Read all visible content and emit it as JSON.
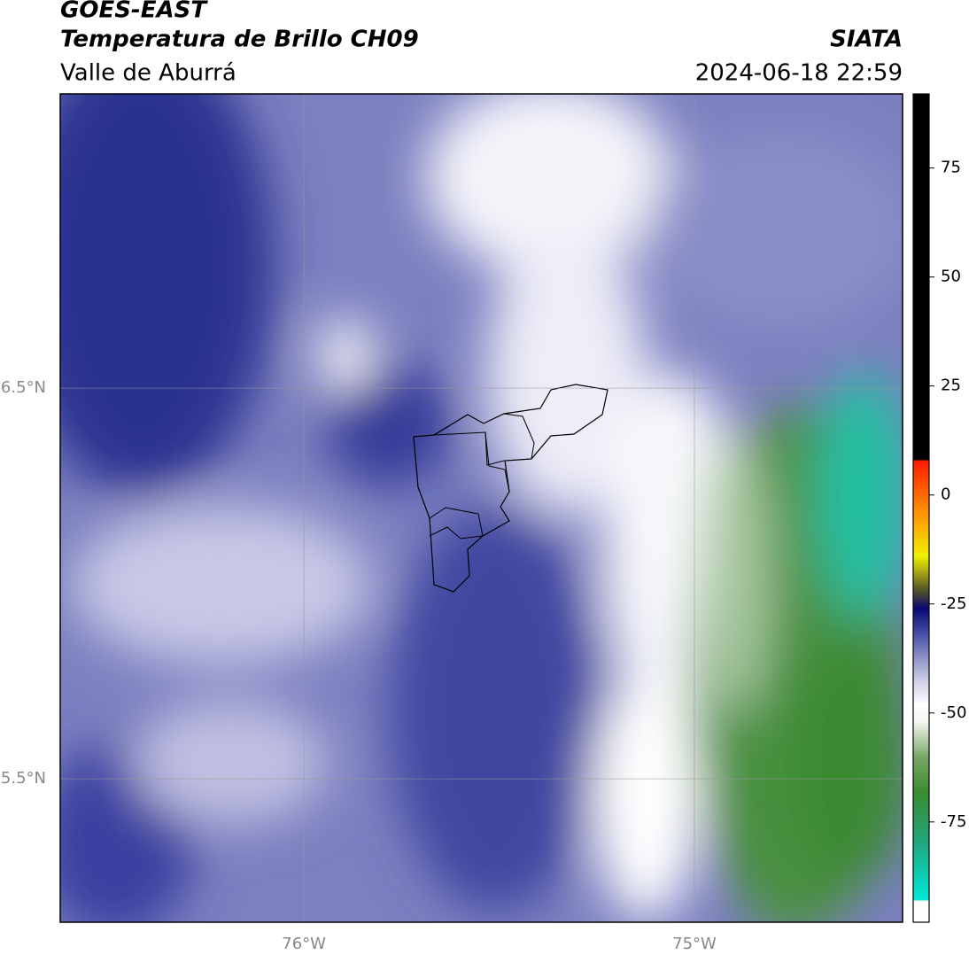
{
  "header": {
    "line1": "GOES-EAST",
    "line2": "Temperatura de Brillo CH09",
    "line3": "Valle de Aburrá",
    "source": "SIATA",
    "datetime": "2024-06-18 22:59"
  },
  "map": {
    "xlim": [
      -76.624,
      -74.467
    ],
    "ylim": [
      5.133,
      7.253
    ],
    "xticks": [
      {
        "value": -76,
        "label": "76°W"
      },
      {
        "value": -75,
        "label": "75°W"
      }
    ],
    "yticks": [
      {
        "value": 6.5,
        "label": "6.5°N"
      },
      {
        "value": 5.5,
        "label": "5.5°N"
      }
    ],
    "grid": true
  },
  "colorbar": {
    "lim": [
      -98,
      92
    ],
    "ticks": [
      75,
      50,
      25,
      0,
      -25,
      -50,
      -75
    ],
    "stops": [
      {
        "value": -98,
        "color": "#ffffff"
      },
      {
        "value": -93,
        "color": "#ffffff"
      },
      {
        "value": -93,
        "color": "#00e8d8"
      },
      {
        "value": -80,
        "color": "#20a880"
      },
      {
        "value": -68,
        "color": "#3c8c30"
      },
      {
        "value": -60,
        "color": "#7aa868"
      },
      {
        "value": -52,
        "color": "#f4f6f0"
      },
      {
        "value": -48,
        "color": "#ffffff"
      },
      {
        "value": -42,
        "color": "#c8c8e4"
      },
      {
        "value": -32,
        "color": "#4a50a8"
      },
      {
        "value": -26,
        "color": "#0a0a70"
      },
      {
        "value": -22,
        "color": "#50502a"
      },
      {
        "value": -14,
        "color": "#f0f000"
      },
      {
        "value": -4,
        "color": "#ff9000"
      },
      {
        "value": 8,
        "color": "#ff1a00"
      },
      {
        "value": 8,
        "color": "#000000"
      },
      {
        "value": 92,
        "color": "#000000"
      }
    ]
  }
}
